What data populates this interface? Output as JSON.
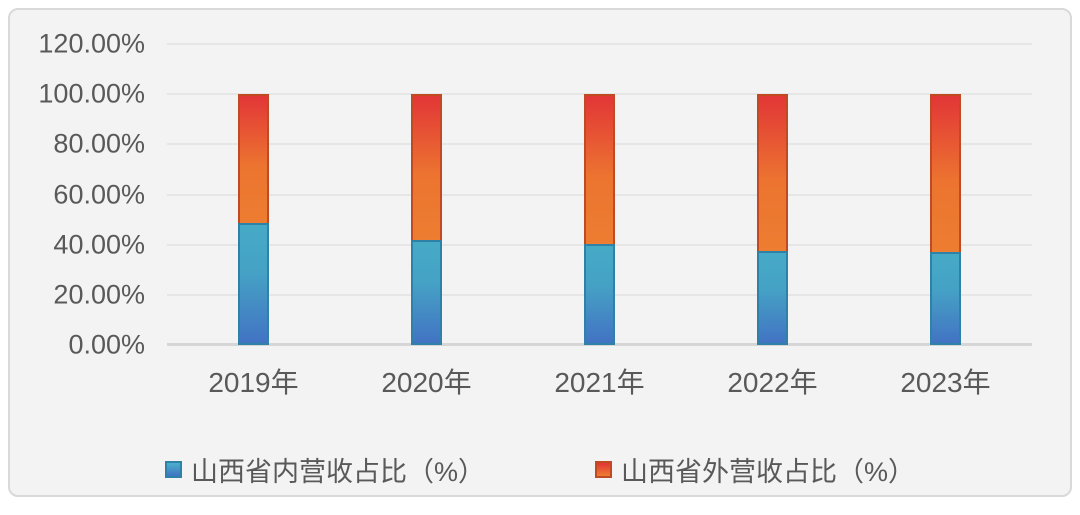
{
  "chart_data": {
    "type": "bar",
    "variant": "stacked-100",
    "title": "",
    "categories": [
      "2019年",
      "2020年",
      "2021年",
      "2022年",
      "2023年"
    ],
    "series": [
      {
        "name": "山西省内营收占比（%）",
        "values": [
          48.5,
          42.0,
          40.2,
          37.5,
          37.0
        ],
        "color_top": "#46aac6",
        "color_bottom": "#4273c3",
        "border_color": "#2e82a8"
      },
      {
        "name": "山西省外营收占比（%）",
        "values": [
          51.5,
          58.0,
          59.8,
          62.5,
          63.0
        ],
        "color_top": "#e23637",
        "color_bottom": "#ed7d31",
        "border_color": "#c04a22"
      }
    ],
    "y_ticks": [
      "0.00%",
      "20.00%",
      "40.00%",
      "60.00%",
      "80.00%",
      "100.00%",
      "120.00%"
    ],
    "ylim": [
      0,
      120
    ],
    "xlabel": "",
    "ylabel": "",
    "grid": true,
    "legend_position": "bottom",
    "colors": {
      "plot_background": "#f3f3f3",
      "card_border": "#d9d9d9",
      "gridline": "#e6e6e6",
      "axis_line": "#d6d6d6",
      "text": "#595959"
    }
  }
}
